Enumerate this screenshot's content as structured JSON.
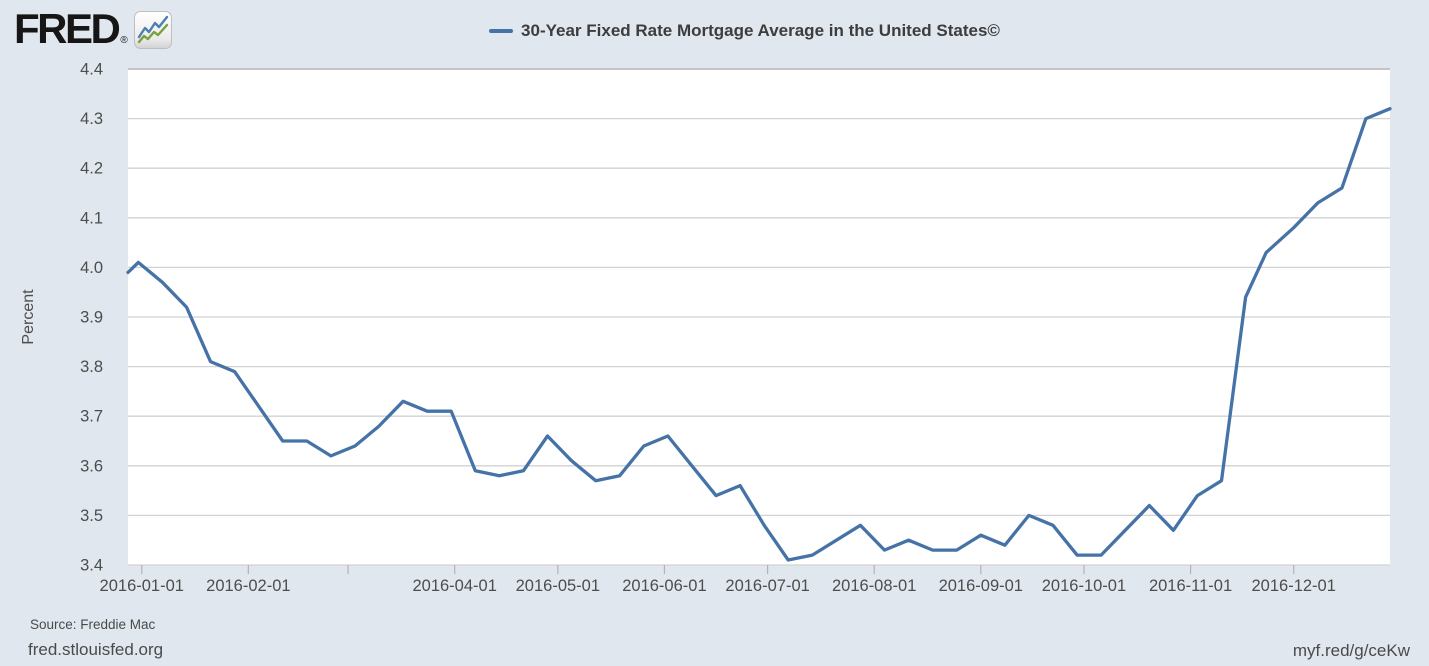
{
  "header": {
    "logo_text": "FRED",
    "registered_mark": "®"
  },
  "legend": {
    "label": "30-Year Fixed Rate Mortgage Average in the United States©"
  },
  "chart_data": {
    "type": "line",
    "title": "30-Year Fixed Rate Mortgage Average in the United States©",
    "ylabel": "Percent",
    "ylim": [
      3.4,
      4.4
    ],
    "ytick_step": 0.1,
    "grid": true,
    "legend_position": "top-center",
    "y_ticks": [
      "4.4",
      "4.3",
      "4.2",
      "4.1",
      "4.0",
      "3.9",
      "3.8",
      "3.7",
      "3.6",
      "3.5",
      "3.4"
    ],
    "x_axis": {
      "start": "2015-12-28",
      "end": "2016-12-29"
    },
    "x_ticks": [
      {
        "date": "2016-01-01",
        "label": "2016-01-01"
      },
      {
        "date": "2016-02-01",
        "label": "2016-02-01"
      },
      {
        "date": "2016-03-01",
        "label": ""
      },
      {
        "date": "2016-04-01",
        "label": "2016-04-01"
      },
      {
        "date": "2016-05-01",
        "label": "2016-05-01"
      },
      {
        "date": "2016-06-01",
        "label": "2016-06-01"
      },
      {
        "date": "2016-07-01",
        "label": "2016-07-01"
      },
      {
        "date": "2016-08-01",
        "label": "2016-08-01"
      },
      {
        "date": "2016-09-01",
        "label": "2016-09-01"
      },
      {
        "date": "2016-10-01",
        "label": "2016-10-01"
      },
      {
        "date": "2016-11-01",
        "label": "2016-11-01"
      },
      {
        "date": "2016-12-01",
        "label": "2016-12-01"
      }
    ],
    "edge_entry": {
      "value": 3.99
    },
    "series": [
      {
        "name": "30-Year Fixed Rate Mortgage Average in the United States©",
        "points": [
          [
            "2015-12-31",
            4.01
          ],
          [
            "2016-01-07",
            3.97
          ],
          [
            "2016-01-14",
            3.92
          ],
          [
            "2016-01-21",
            3.81
          ],
          [
            "2016-01-28",
            3.79
          ],
          [
            "2016-02-04",
            3.72
          ],
          [
            "2016-02-11",
            3.65
          ],
          [
            "2016-02-18",
            3.65
          ],
          [
            "2016-02-25",
            3.62
          ],
          [
            "2016-03-03",
            3.64
          ],
          [
            "2016-03-10",
            3.68
          ],
          [
            "2016-03-17",
            3.73
          ],
          [
            "2016-03-24",
            3.71
          ],
          [
            "2016-03-31",
            3.71
          ],
          [
            "2016-04-07",
            3.59
          ],
          [
            "2016-04-14",
            3.58
          ],
          [
            "2016-04-21",
            3.59
          ],
          [
            "2016-04-28",
            3.66
          ],
          [
            "2016-05-05",
            3.61
          ],
          [
            "2016-05-12",
            3.57
          ],
          [
            "2016-05-19",
            3.58
          ],
          [
            "2016-05-26",
            3.64
          ],
          [
            "2016-06-02",
            3.66
          ],
          [
            "2016-06-09",
            3.6
          ],
          [
            "2016-06-16",
            3.54
          ],
          [
            "2016-06-23",
            3.56
          ],
          [
            "2016-06-30",
            3.48
          ],
          [
            "2016-07-07",
            3.41
          ],
          [
            "2016-07-14",
            3.42
          ],
          [
            "2016-07-21",
            3.45
          ],
          [
            "2016-07-28",
            3.48
          ],
          [
            "2016-08-04",
            3.43
          ],
          [
            "2016-08-11",
            3.45
          ],
          [
            "2016-08-18",
            3.43
          ],
          [
            "2016-08-25",
            3.43
          ],
          [
            "2016-09-01",
            3.46
          ],
          [
            "2016-09-08",
            3.44
          ],
          [
            "2016-09-15",
            3.5
          ],
          [
            "2016-09-22",
            3.48
          ],
          [
            "2016-09-29",
            3.42
          ],
          [
            "2016-10-06",
            3.42
          ],
          [
            "2016-10-13",
            3.47
          ],
          [
            "2016-10-20",
            3.52
          ],
          [
            "2016-10-27",
            3.47
          ],
          [
            "2016-11-03",
            3.54
          ],
          [
            "2016-11-10",
            3.57
          ],
          [
            "2016-11-17",
            3.94
          ],
          [
            "2016-11-23",
            4.03
          ],
          [
            "2016-12-01",
            4.08
          ],
          [
            "2016-12-08",
            4.13
          ],
          [
            "2016-12-15",
            4.16
          ],
          [
            "2016-12-22",
            4.3
          ],
          [
            "2016-12-29",
            4.32
          ]
        ]
      }
    ],
    "colors": {
      "line": "#4572a7",
      "plot_bg": "#ffffff",
      "page_bg": "#e0e7ee",
      "grid": "#d2d2d2",
      "plot_border": "#c4c4c4",
      "tick": "#b3b3b3",
      "label_text": "#4d4d4d"
    }
  },
  "footer": {
    "source": "Source: Freddie Mac",
    "site": "fred.stlouisfed.org",
    "shortlink": "myf.red/g/ceKw"
  }
}
